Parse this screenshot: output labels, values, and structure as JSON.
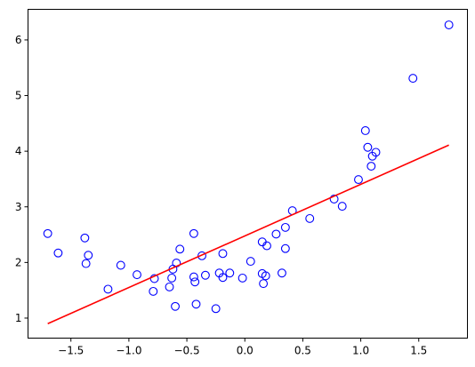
{
  "chart_data": {
    "type": "scatter",
    "title": "",
    "xlabel": "",
    "ylabel": "",
    "xlim": [
      -1.87,
      1.92
    ],
    "ylim": [
      0.64,
      6.55
    ],
    "grid": false,
    "xticks": [
      {
        "value": -1.5,
        "label": "−1.5"
      },
      {
        "value": -1.0,
        "label": "−1.0"
      },
      {
        "value": -0.5,
        "label": "−0.5"
      },
      {
        "value": 0.0,
        "label": "0.0"
      },
      {
        "value": 0.5,
        "label": "0.5"
      },
      {
        "value": 1.0,
        "label": "1.0"
      },
      {
        "value": 1.5,
        "label": "1.5"
      }
    ],
    "yticks": [
      {
        "value": 1,
        "label": "1"
      },
      {
        "value": 2,
        "label": "2"
      },
      {
        "value": 3,
        "label": "3"
      },
      {
        "value": 4,
        "label": "4"
      },
      {
        "value": 5,
        "label": "5"
      },
      {
        "value": 6,
        "label": "6"
      }
    ],
    "series": [
      {
        "kind": "scatter",
        "marker": "open-circle",
        "color": "#0000ff",
        "points": [
          [
            -1.7,
            2.52
          ],
          [
            -1.61,
            2.17
          ],
          [
            -1.38,
            2.44
          ],
          [
            -1.37,
            1.98
          ],
          [
            -1.35,
            2.13
          ],
          [
            -1.18,
            1.52
          ],
          [
            -1.07,
            1.95
          ],
          [
            -0.93,
            1.78
          ],
          [
            -0.79,
            1.48
          ],
          [
            -0.78,
            1.71
          ],
          [
            -0.65,
            1.56
          ],
          [
            -0.63,
            1.72
          ],
          [
            -0.62,
            1.88
          ],
          [
            -0.6,
            1.21
          ],
          [
            -0.59,
            1.99
          ],
          [
            -0.56,
            2.24
          ],
          [
            -0.44,
            1.74
          ],
          [
            -0.44,
            2.52
          ],
          [
            -0.43,
            1.65
          ],
          [
            -0.42,
            1.25
          ],
          [
            -0.37,
            2.12
          ],
          [
            -0.34,
            1.77
          ],
          [
            -0.25,
            1.17
          ],
          [
            -0.22,
            1.81
          ],
          [
            -0.19,
            1.73
          ],
          [
            -0.19,
            2.16
          ],
          [
            -0.13,
            1.81
          ],
          [
            -0.02,
            1.72
          ],
          [
            0.05,
            2.02
          ],
          [
            0.15,
            2.37
          ],
          [
            0.15,
            1.8
          ],
          [
            0.16,
            1.62
          ],
          [
            0.18,
            1.76
          ],
          [
            0.19,
            2.3
          ],
          [
            0.27,
            2.51
          ],
          [
            0.32,
            1.81
          ],
          [
            0.35,
            2.63
          ],
          [
            0.35,
            2.25
          ],
          [
            0.41,
            2.93
          ],
          [
            0.56,
            2.79
          ],
          [
            0.77,
            3.14
          ],
          [
            0.84,
            3.01
          ],
          [
            0.98,
            3.49
          ],
          [
            1.04,
            4.37
          ],
          [
            1.06,
            4.07
          ],
          [
            1.09,
            3.73
          ],
          [
            1.1,
            3.91
          ],
          [
            1.13,
            3.98
          ],
          [
            1.45,
            5.31
          ],
          [
            1.76,
            6.27
          ]
        ]
      },
      {
        "kind": "line",
        "color": "#ff0000",
        "points": [
          [
            -1.7,
            0.9
          ],
          [
            1.76,
            4.11
          ]
        ]
      }
    ]
  }
}
